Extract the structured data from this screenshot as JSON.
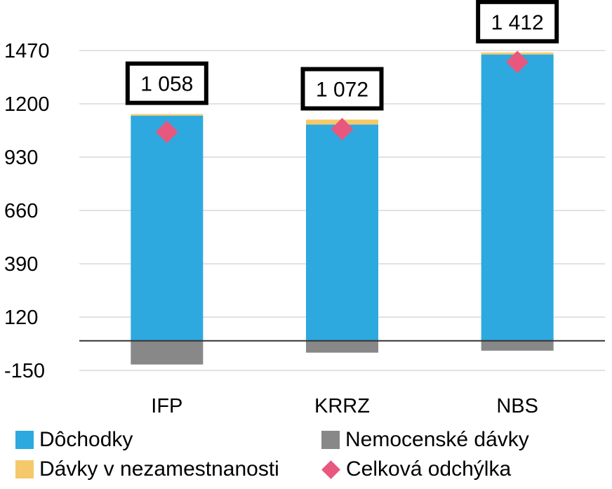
{
  "chart_data": {
    "type": "bar",
    "stacked": true,
    "categories": [
      "IFP",
      "KRRZ",
      "NBS"
    ],
    "series": [
      {
        "name": "Dôchodky",
        "kind": "bar",
        "color": "#2EA9DF",
        "values": [
          1140,
          1095,
          1450
        ]
      },
      {
        "name": "Dávky v nezamestnanosti",
        "kind": "bar",
        "color": "#F5C96B",
        "values": [
          8,
          25,
          10
        ]
      },
      {
        "name": "Nemocenské dávky",
        "kind": "bar",
        "color": "#888888",
        "values": [
          -120,
          -60,
          -50
        ]
      },
      {
        "name": "Celková odchýlka",
        "kind": "marker",
        "color": "#E8577E",
        "values": [
          1058,
          1072,
          1412
        ]
      }
    ],
    "data_labels": [
      "1 058",
      "1 072",
      "1 412"
    ],
    "y_ticks": [
      -150,
      120,
      390,
      660,
      930,
      1200,
      1470
    ],
    "ylim": [
      -150,
      1470
    ],
    "grid": true,
    "legend_position": "bottom"
  }
}
